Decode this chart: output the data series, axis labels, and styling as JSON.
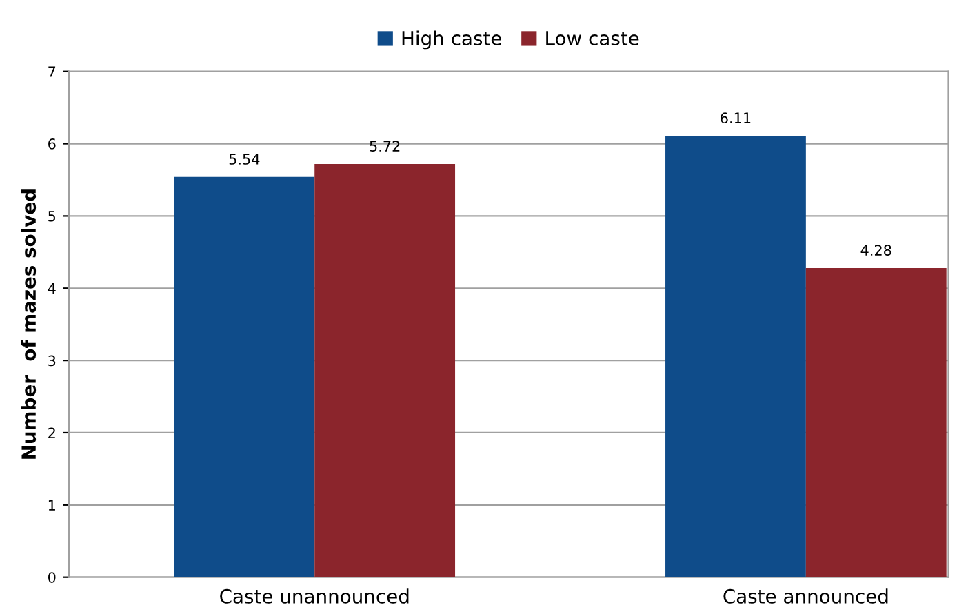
{
  "chart_data": {
    "type": "bar",
    "ylabel": "Number  of mazes solved",
    "categories": [
      "Caste unannounced",
      "Caste announced"
    ],
    "series": [
      {
        "name": "High caste",
        "color": "#0f4c8a",
        "values": [
          5.54,
          6.11
        ]
      },
      {
        "name": "Low caste",
        "color": "#8b252c",
        "values": [
          5.72,
          4.28
        ]
      }
    ],
    "ylim": [
      0,
      7
    ],
    "yticks": [
      0,
      1,
      2,
      3,
      4,
      5,
      6,
      7
    ],
    "grid": "y",
    "legend": "top",
    "data_labels": true
  }
}
